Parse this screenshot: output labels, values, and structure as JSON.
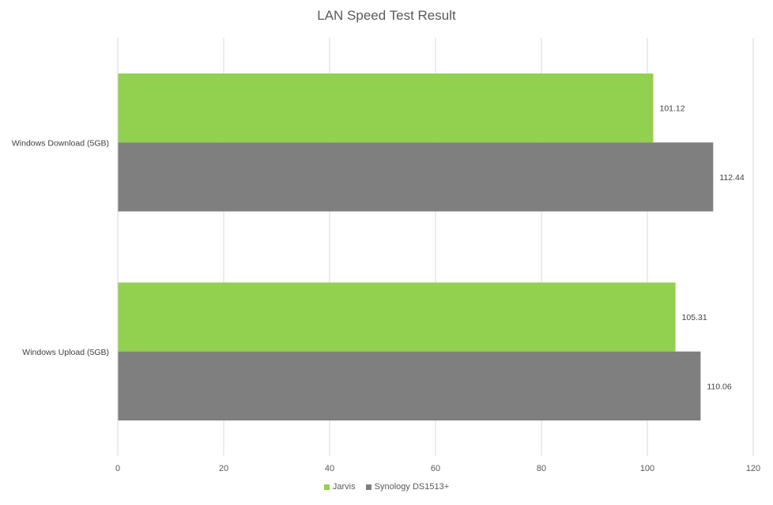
{
  "chart_data": {
    "type": "bar",
    "orientation": "horizontal",
    "title": "LAN Speed Test Result",
    "categories": [
      "Windows Download (5GB)",
      "Windows Upload (5GB)"
    ],
    "series": [
      {
        "name": "Jarvis",
        "values": [
          101.12,
          105.31
        ],
        "color": "#92d050"
      },
      {
        "name": "Synology DS1513+",
        "values": [
          112.44,
          110.06
        ],
        "color": "#7f7f7f"
      }
    ],
    "xlim": [
      0,
      120
    ],
    "xticks": [
      0,
      20,
      40,
      60,
      80,
      100,
      120
    ],
    "grid": true,
    "data_labels": true,
    "legend_position": "bottom"
  }
}
